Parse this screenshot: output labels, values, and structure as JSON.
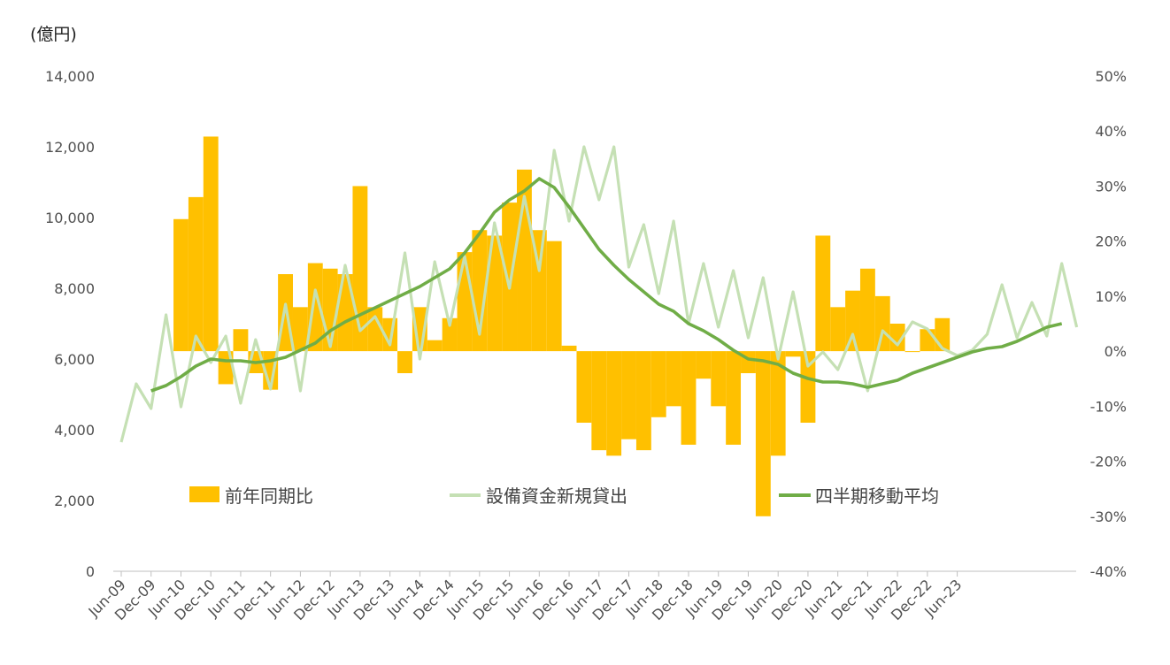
{
  "chart_data": {
    "type": "bar",
    "unit_label": "(億円)",
    "x_tick_labels": [
      "Jun-09",
      "Dec-09",
      "Jun-10",
      "Dec-10",
      "Jun-11",
      "Dec-11",
      "Jun-12",
      "Dec-12",
      "Jun-13",
      "Dec-13",
      "Jun-14",
      "Dec-14",
      "Jun-15",
      "Dec-15",
      "Jun-16",
      "Dec-16",
      "Jun-17",
      "Dec-17",
      "Jun-18",
      "Dec-18",
      "Jun-19",
      "Dec-19",
      "Jun-20",
      "Dec-20",
      "Jun-21",
      "Dec-21",
      "Jun-22",
      "Dec-22",
      "Jun-23"
    ],
    "y_left": {
      "ticks": [
        "0",
        "2,000",
        "4,000",
        "6,000",
        "8,000",
        "10,000",
        "12,000",
        "14,000"
      ],
      "ylim": [
        0,
        14000
      ]
    },
    "y_right": {
      "ticks": [
        "-40%",
        "-30%",
        "-20%",
        "-10%",
        "0%",
        "10%",
        "20%",
        "30%",
        "40%",
        "50%"
      ],
      "ylim": [
        -40,
        50
      ]
    },
    "grid": false,
    "legend_position": "bottom-inside",
    "series": [
      {
        "name": "前年同期比",
        "kind": "bar",
        "axis": "right",
        "unit": "%",
        "color": "#FFC000",
        "values": [
          null,
          null,
          null,
          24,
          28,
          39,
          -6,
          4,
          -4,
          -7,
          14,
          8,
          16,
          15,
          14,
          30,
          8,
          6,
          -4,
          8,
          2,
          6,
          18,
          22,
          21,
          27,
          33,
          22,
          20,
          1,
          -13,
          -18,
          -19,
          -16,
          -18,
          -12,
          -10,
          -17,
          -5,
          -10,
          -17,
          -4,
          -30,
          -19,
          -1,
          -13,
          21,
          8,
          11,
          15,
          10,
          5,
          0,
          4,
          6
        ],
        "x_index_start": 0
      },
      {
        "name": "設備資金新規貸出",
        "kind": "line",
        "axis": "left",
        "color": "#C5E0B4",
        "values": [
          3650,
          5300,
          4600,
          7250,
          4650,
          6650,
          5900,
          6650,
          4750,
          6550,
          5150,
          7550,
          5100,
          7950,
          6350,
          8650,
          6800,
          7200,
          6400,
          9000,
          6000,
          8750,
          6950,
          8900,
          6700,
          9850,
          8000,
          10600,
          8500,
          11900,
          9900,
          12000,
          10500,
          12000,
          8600,
          9800,
          7850,
          9900,
          7000,
          8700,
          6900,
          8500,
          6600,
          8300,
          6000,
          7900,
          5800,
          6200,
          5700,
          6700,
          5100,
          6800,
          6400,
          7050,
          6850,
          6300,
          6100,
          6250,
          6700,
          8100,
          6600,
          7600,
          6650,
          8700,
          6900
        ]
      },
      {
        "name": "四半期移動平均",
        "kind": "line",
        "axis": "left",
        "color": "#70AD47",
        "start_index": 2,
        "values": [
          5100,
          5250,
          5500,
          5800,
          6000,
          5950,
          5950,
          5900,
          5950,
          6050,
          6250,
          6450,
          6800,
          7050,
          7250,
          7450,
          7650,
          7850,
          8050,
          8300,
          8550,
          9000,
          9550,
          10150,
          10500,
          10750,
          11100,
          10850,
          10300,
          9700,
          9100,
          8650,
          8250,
          7900,
          7550,
          7350,
          7000,
          6800,
          6550,
          6250,
          6000,
          5950,
          5850,
          5600,
          5450,
          5350,
          5350,
          5300,
          5200,
          5300,
          5400,
          5600,
          5750,
          5900,
          6050,
          6200,
          6300,
          6350,
          6500,
          6700,
          6900,
          7000
        ],
        "x_index_start": 0
      }
    ]
  },
  "legend": {
    "bar_label": "前年同期比",
    "line1_label": "設備資金新規貸出",
    "line2_label": "四半期移動平均"
  }
}
